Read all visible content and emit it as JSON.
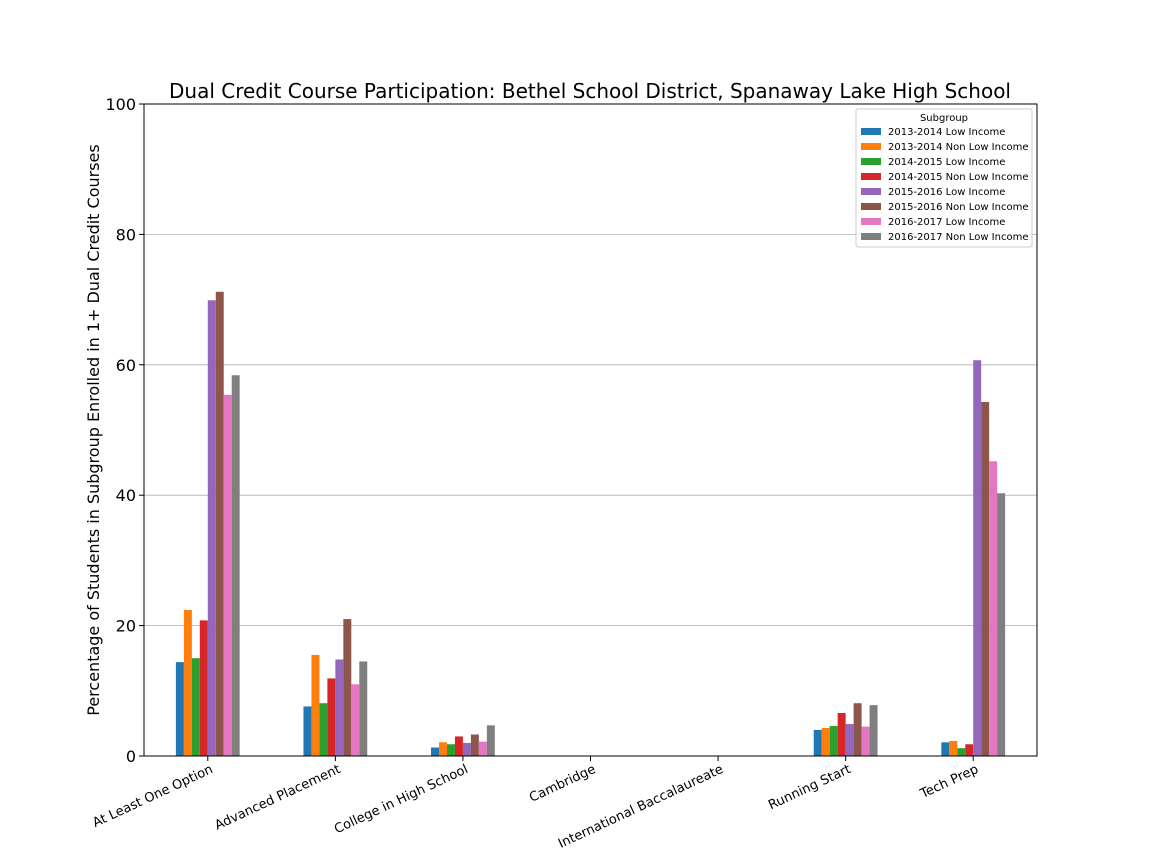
{
  "chart_data": {
    "type": "bar",
    "title": "Dual Credit Course Participation: Bethel School District, Spanaway Lake High School",
    "xlabel": "",
    "ylabel": "Percentage of Students in Subgroup Enrolled in 1+ Dual Credit Courses",
    "ylim": [
      0,
      100
    ],
    "yticks": [
      "0",
      "20",
      "40",
      "60",
      "80",
      "100"
    ],
    "grid": "horizontal",
    "legend_title": "Subgroup",
    "legend_position": "top-right",
    "categories": [
      "At Least One Option",
      "Advanced Placement",
      "College in High School",
      "Cambridge",
      "International Baccalaureate",
      "Running Start",
      "Tech Prep"
    ],
    "series": [
      {
        "name": "2013-2014 Low Income",
        "color": "#1f77b4",
        "values": [
          14.4,
          7.6,
          1.3,
          0,
          0,
          4.0,
          2.1
        ]
      },
      {
        "name": "2013-2014 Non Low Income",
        "color": "#ff7f0e",
        "values": [
          22.4,
          15.5,
          2.1,
          0,
          0,
          4.3,
          2.3
        ]
      },
      {
        "name": "2014-2015 Low Income",
        "color": "#2ca02c",
        "values": [
          15.0,
          8.1,
          1.8,
          0,
          0,
          4.6,
          1.2
        ]
      },
      {
        "name": "2014-2015 Non Low Income",
        "color": "#d62728",
        "values": [
          20.8,
          11.9,
          3.0,
          0,
          0,
          6.6,
          1.8
        ]
      },
      {
        "name": "2015-2016 Low Income",
        "color": "#9467bd",
        "values": [
          69.9,
          14.8,
          2.0,
          0,
          0,
          4.9,
          60.7
        ]
      },
      {
        "name": "2015-2016 Non Low Income",
        "color": "#8c564b",
        "values": [
          71.2,
          21.0,
          3.3,
          0,
          0,
          8.1,
          54.3
        ]
      },
      {
        "name": "2016-2017 Low Income",
        "color": "#e377c2",
        "values": [
          55.4,
          11.0,
          2.2,
          0,
          0,
          4.5,
          45.2
        ]
      },
      {
        "name": "2016-2017 Non Low Income",
        "color": "#7f7f7f",
        "values": [
          58.4,
          14.5,
          4.7,
          0,
          0,
          7.8,
          40.3
        ]
      }
    ]
  }
}
